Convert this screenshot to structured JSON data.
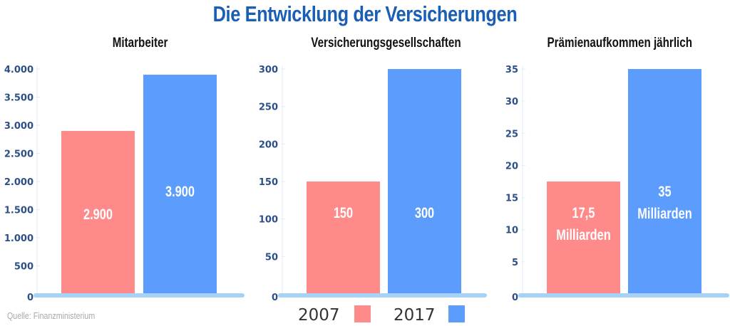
{
  "title": "Die Entwicklung der Versicherungen",
  "source": "Quelle: Finanzministerium",
  "legend": [
    {
      "label": "2007",
      "color": "#ff8a8a"
    },
    {
      "label": "2017",
      "color": "#5b9cfc"
    }
  ],
  "colors": {
    "title": "#1a5fb4",
    "axis": "#a6d2f5",
    "tick": "#2b4f86"
  },
  "chart_data": [
    {
      "type": "bar",
      "title": "Mitarbeiter",
      "categories": [
        "2007",
        "2017"
      ],
      "values": [
        2900,
        3900
      ],
      "value_labels": [
        "2.900",
        "3.900"
      ],
      "ylim": [
        0,
        4000
      ],
      "yticks": [
        0,
        500,
        1000,
        1500,
        2000,
        2500,
        3000,
        3500,
        4000
      ],
      "ytick_labels": [
        "0",
        "500",
        "1.000",
        "1.500",
        "2.000",
        "2.500",
        "3.000",
        "3.500",
        "4.000"
      ]
    },
    {
      "type": "bar",
      "title": "Versicherungsgesellschaften",
      "categories": [
        "2007",
        "2017"
      ],
      "values": [
        150,
        300
      ],
      "value_labels": [
        "150",
        "300"
      ],
      "ylim": [
        0,
        300
      ],
      "yticks": [
        0,
        50,
        100,
        150,
        200,
        250,
        300
      ],
      "ytick_labels": [
        "0",
        "50",
        "100",
        "150",
        "200",
        "250",
        "300"
      ]
    },
    {
      "type": "bar",
      "title": "Prämienaufkommen jährlich",
      "categories": [
        "2007",
        "2017"
      ],
      "values": [
        17.5,
        35
      ],
      "value_labels": [
        [
          "17,5",
          "Milliarden"
        ],
        [
          "35",
          "Milliarden"
        ]
      ],
      "ylim": [
        0,
        35
      ],
      "yticks": [
        0,
        5,
        10,
        15,
        20,
        25,
        30,
        35
      ],
      "ytick_labels": [
        "0",
        "5",
        "10",
        "15",
        "20",
        "25",
        "30",
        "35"
      ]
    }
  ]
}
